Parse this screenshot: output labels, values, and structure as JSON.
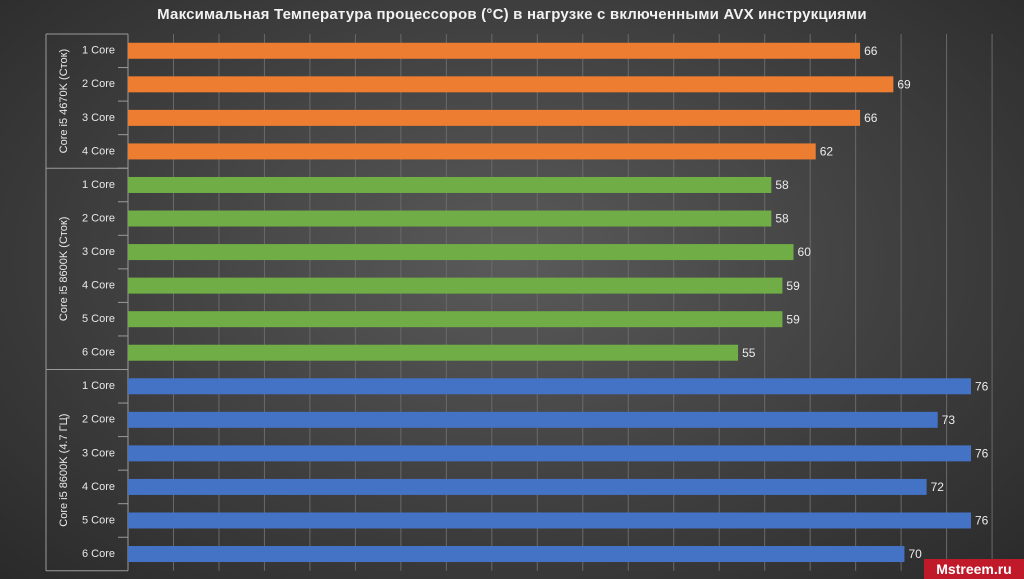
{
  "chart_data": {
    "type": "bar",
    "orientation": "horizontal",
    "title": "Максимальная Температура процессоров (°C) в нагрузке с включенными AVX инструкциями",
    "xlim": [
      0,
      80
    ],
    "grid": true,
    "groups": [
      {
        "name": "Core i5 4670K (Сток)",
        "color": "#ed7d31",
        "categories": [
          "1 Core",
          "2 Core",
          "3 Core",
          "4 Core"
        ],
        "values": [
          66,
          69,
          66,
          62
        ]
      },
      {
        "name": "Core i5 8600K (Сток)",
        "color": "#70ad47",
        "categories": [
          "1 Core",
          "2 Core",
          "3 Core",
          "4 Core",
          "5 Core",
          "6 Core"
        ],
        "values": [
          58,
          58,
          60,
          59,
          59,
          55
        ]
      },
      {
        "name": "Core i5 8600K (4.7 ГЦ)",
        "color": "#4472c4",
        "categories": [
          "1 Core",
          "2 Core",
          "3 Core",
          "4 Core",
          "5 Core",
          "6 Core"
        ],
        "values": [
          76,
          73,
          76,
          72,
          76,
          70
        ]
      }
    ]
  },
  "watermark": "Mstreem.ru"
}
